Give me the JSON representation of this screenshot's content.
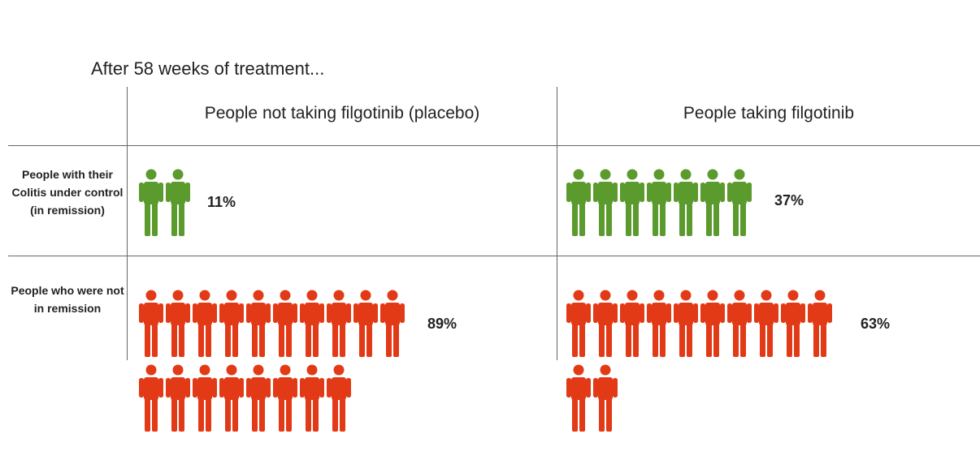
{
  "title": "After 58 weeks of treatment...",
  "columns": [
    "People not taking filgotinib (placebo)",
    "People taking filgotinib"
  ],
  "rows": [
    "People with their Colitis under control (in remission)",
    "People who were not in remission"
  ],
  "colors": {
    "remission": "#5b9a2c",
    "not_remission": "#e23a17"
  },
  "chart_data": {
    "type": "pictogram",
    "title": "After 58 weeks of treatment...",
    "categories": [
      "People not taking filgotinib (placebo)",
      "People taking filgotinib"
    ],
    "series": [
      {
        "name": "People with their Colitis under control (in remission)",
        "values": [
          11,
          37
        ],
        "labels": [
          "11%",
          "37%"
        ],
        "icon_counts": [
          2,
          7
        ],
        "color": "#5b9a2c"
      },
      {
        "name": "People who were not in remission",
        "values": [
          89,
          63
        ],
        "labels": [
          "89%",
          "63%"
        ],
        "icon_counts": [
          18,
          12
        ],
        "color": "#e23a17"
      }
    ]
  }
}
